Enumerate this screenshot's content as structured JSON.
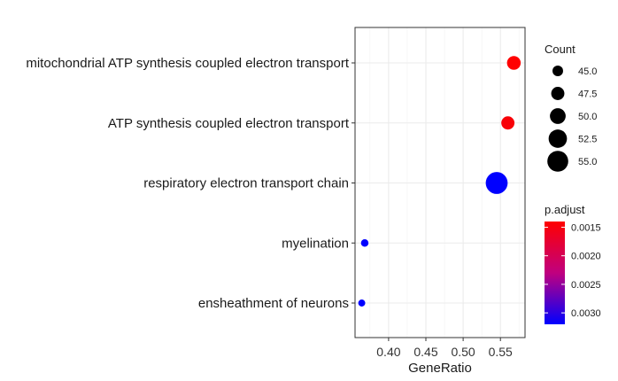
{
  "chart_data": {
    "type": "scatter",
    "xlabel": "GeneRatio",
    "ylabel": "",
    "xlim": [
      0.355,
      0.583
    ],
    "x_ticks": [
      "0.40",
      "0.45",
      "0.50",
      "0.55"
    ],
    "x_tick_values": [
      0.4,
      0.45,
      0.5,
      0.55
    ],
    "categories": [
      "mitochondrial ATP synthesis coupled electron transport",
      "ATP synthesis coupled electron transport",
      "respiratory electron transport chain",
      "myelination",
      "ensheathment of neurons"
    ],
    "points": [
      {
        "category": "mitochondrial ATP synthesis coupled electron transport",
        "gene_ratio": 0.568,
        "count": 48,
        "p_adjust": 0.0014
      },
      {
        "category": "ATP synthesis coupled electron transport",
        "gene_ratio": 0.56,
        "count": 47.5,
        "p_adjust": 0.00145
      },
      {
        "category": "respiratory electron transport chain",
        "gene_ratio": 0.545,
        "count": 56,
        "p_adjust": 0.0032
      },
      {
        "category": "myelination",
        "gene_ratio": 0.368,
        "count": 42,
        "p_adjust": 0.0032
      },
      {
        "category": "ensheathment of neurons",
        "gene_ratio": 0.364,
        "count": 41.5,
        "p_adjust": 0.0032
      }
    ],
    "size_legend": {
      "title": "Count",
      "values": [
        45.0,
        47.5,
        50.0,
        52.5,
        55.0
      ],
      "labels": [
        "45.0",
        "47.5",
        "50.0",
        "52.5",
        "55.0"
      ]
    },
    "color_legend": {
      "title": "p.adjust",
      "range": [
        0.0014,
        0.0032
      ],
      "ticks": [
        0.0015,
        0.002,
        0.0025,
        0.003
      ],
      "labels": [
        "0.0015",
        "0.0020",
        "0.0025",
        "0.0030"
      ],
      "low_color": "#ff0000",
      "high_color": "#0000ff"
    },
    "grid": true,
    "legend_position": "right"
  }
}
